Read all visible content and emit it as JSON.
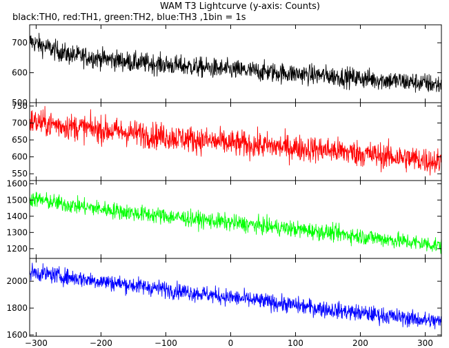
{
  "chart_data": {
    "title": "WAM T3 Lightcurve (y-axis: Counts)",
    "subtitle": "black:TH0, red:TH1, green:TH2, blue:TH3 ,1bin = 1s",
    "type": "line",
    "x_range": [
      -310,
      325
    ],
    "x_ticks": [
      -300,
      -200,
      -100,
      0,
      100,
      200,
      300
    ],
    "x_tick_labels": [
      "−300",
      "−200",
      "−100",
      "0",
      "100",
      "200",
      "300"
    ],
    "grid": false,
    "panels": [
      {
        "series": "TH0",
        "color": "#000000",
        "ylim": [
          500,
          760
        ],
        "y_ticks": [
          500,
          600,
          700
        ],
        "y_tick_labels": [
          "500",
          "600",
          "700"
        ],
        "trend": [
          [
            -310,
            705
          ],
          [
            -250,
            660
          ],
          [
            -150,
            635
          ],
          [
            0,
            610
          ],
          [
            150,
            590
          ],
          [
            300,
            565
          ],
          [
            320,
            560
          ]
        ],
        "noise": 30
      },
      {
        "series": "TH1",
        "color": "#ff0000",
        "ylim": [
          530,
          760
        ],
        "y_ticks": [
          550,
          600,
          650,
          700,
          750
        ],
        "y_tick_labels": [
          "550",
          "600",
          "650",
          "700",
          "750"
        ],
        "trend": [
          [
            -310,
            705
          ],
          [
            -250,
            690
          ],
          [
            -150,
            670
          ],
          [
            0,
            640
          ],
          [
            150,
            620
          ],
          [
            300,
            590
          ],
          [
            320,
            585
          ]
        ],
        "noise": 35
      },
      {
        "series": "TH2",
        "color": "#00ff00",
        "ylim": [
          1140,
          1620
        ],
        "y_ticks": [
          1200,
          1300,
          1400,
          1500,
          1600
        ],
        "y_tick_labels": [
          "1200",
          "1300",
          "1400",
          "1500",
          "1600"
        ],
        "trend": [
          [
            -310,
            1510
          ],
          [
            -250,
            1470
          ],
          [
            -150,
            1420
          ],
          [
            0,
            1360
          ],
          [
            150,
            1300
          ],
          [
            300,
            1230
          ],
          [
            320,
            1220
          ]
        ],
        "noise": 45
      },
      {
        "series": "TH3",
        "color": "#0000ff",
        "ylim": [
          1590,
          2170
        ],
        "y_ticks": [
          1600,
          1800,
          2000
        ],
        "y_tick_labels": [
          "1600",
          "1800",
          "2000"
        ],
        "trend": [
          [
            -310,
            2070
          ],
          [
            -250,
            2030
          ],
          [
            -150,
            1970
          ],
          [
            0,
            1880
          ],
          [
            150,
            1790
          ],
          [
            300,
            1710
          ],
          [
            320,
            1700
          ]
        ],
        "noise": 55
      }
    ]
  }
}
